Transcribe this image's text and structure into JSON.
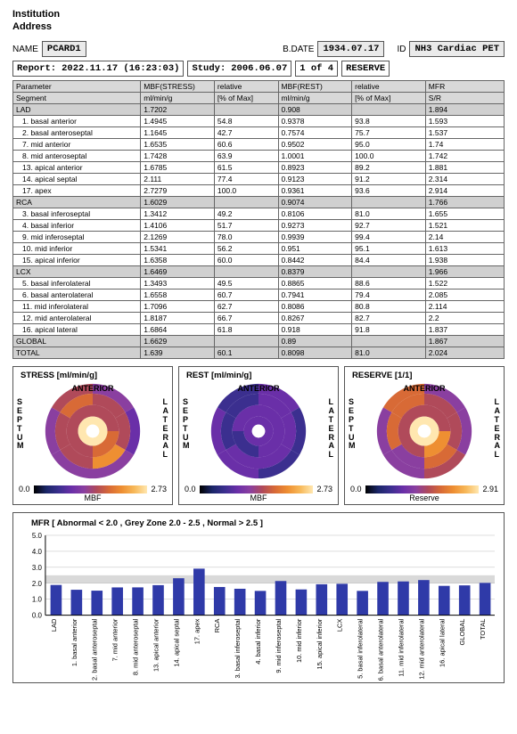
{
  "header": {
    "institution": "Institution",
    "address": "Address",
    "name_label": "NAME",
    "name": "PCARD1",
    "bdate_label": "B.DATE",
    "bdate": "1934.07.17",
    "id_label": "ID",
    "id": "NH3 Cardiac PET",
    "report_label": "Report:",
    "report": "2022.11.17 (16:23:03)",
    "study_label": "Study:",
    "study": "2006.06.07",
    "page": "1 of 4",
    "mode": "RESERVE"
  },
  "table": {
    "head": [
      "Parameter",
      "MBF(STRESS)",
      "relative",
      "MBF(REST)",
      "relative",
      "MFR"
    ],
    "units": [
      "Segment",
      "ml/min/g",
      "[% of Max]",
      "ml/min/g",
      "[% of Max]",
      "S/R"
    ],
    "colwidths": [
      "26%",
      "15%",
      "13%",
      "15%",
      "15%",
      "16%"
    ],
    "rows": [
      {
        "g": true,
        "c": [
          "LAD",
          "1.7202",
          "",
          "0.908",
          "",
          "1.894"
        ]
      },
      {
        "c": [
          "1. basal anterior",
          "1.4945",
          "54.8",
          "0.9378",
          "93.8",
          "1.593"
        ]
      },
      {
        "c": [
          "2. basal anteroseptal",
          "1.1645",
          "42.7",
          "0.7574",
          "75.7",
          "1.537"
        ]
      },
      {
        "c": [
          "7. mid anterior",
          "1.6535",
          "60.6",
          "0.9502",
          "95.0",
          "1.74"
        ]
      },
      {
        "c": [
          "8. mid anteroseptal",
          "1.7428",
          "63.9",
          "1.0001",
          "100.0",
          "1.742"
        ]
      },
      {
        "c": [
          "13. apical anterior",
          "1.6785",
          "61.5",
          "0.8923",
          "89.2",
          "1.881"
        ]
      },
      {
        "c": [
          "14. apical septal",
          "2.111",
          "77.4",
          "0.9123",
          "91.2",
          "2.314"
        ]
      },
      {
        "c": [
          "17. apex",
          "2.7279",
          "100.0",
          "0.9361",
          "93.6",
          "2.914"
        ]
      },
      {
        "g": true,
        "c": [
          "RCA",
          "1.6029",
          "",
          "0.9074",
          "",
          "1.766"
        ]
      },
      {
        "c": [
          "3. basal inferoseptal",
          "1.3412",
          "49.2",
          "0.8106",
          "81.0",
          "1.655"
        ]
      },
      {
        "c": [
          "4. basal inferior",
          "1.4106",
          "51.7",
          "0.9273",
          "92.7",
          "1.521"
        ]
      },
      {
        "c": [
          "9. mid inferoseptal",
          "2.1269",
          "78.0",
          "0.9939",
          "99.4",
          "2.14"
        ]
      },
      {
        "c": [
          "10. mid inferior",
          "1.5341",
          "56.2",
          "0.951",
          "95.1",
          "1.613"
        ]
      },
      {
        "c": [
          "15. apical inferior",
          "1.6358",
          "60.0",
          "0.8442",
          "84.4",
          "1.938"
        ]
      },
      {
        "g": true,
        "c": [
          "LCX",
          "1.6469",
          "",
          "0.8379",
          "",
          "1.966"
        ]
      },
      {
        "c": [
          "5. basal inferolateral",
          "1.3493",
          "49.5",
          "0.8865",
          "88.6",
          "1.522"
        ]
      },
      {
        "c": [
          "6. basal anterolateral",
          "1.6558",
          "60.7",
          "0.7941",
          "79.4",
          "2.085"
        ]
      },
      {
        "c": [
          "11. mid inferolateral",
          "1.7096",
          "62.7",
          "0.8086",
          "80.8",
          "2.114"
        ]
      },
      {
        "c": [
          "12. mid anterolateral",
          "1.8187",
          "66.7",
          "0.8267",
          "82.7",
          "2.2"
        ]
      },
      {
        "c": [
          "16. apical lateral",
          "1.6864",
          "61.8",
          "0.918",
          "91.8",
          "1.837"
        ]
      },
      {
        "g": true,
        "c": [
          "GLOBAL",
          "1.6629",
          "",
          "0.89",
          "",
          "1.867"
        ]
      },
      {
        "g": true,
        "c": [
          "TOTAL",
          "1.639",
          "60.1",
          "0.8098",
          "81.0",
          "2.024"
        ]
      }
    ]
  },
  "polar": {
    "anterior": "ANTERIOR",
    "septum": "SEPTUM",
    "lateral": "LATERAL",
    "panels": [
      {
        "title": "STRESS [ml/min/g]",
        "min": "0.0",
        "max": "2.73",
        "label": "MBF",
        "type": "stress"
      },
      {
        "title": "REST [ml/min/g]",
        "min": "0.0",
        "max": "2.73",
        "label": "MBF",
        "type": "rest"
      },
      {
        "title": "RESERVE [1/1]",
        "min": "0.0",
        "max": "2.91",
        "label": "Reserve",
        "type": "reserve"
      }
    ],
    "colormap": [
      "#000000",
      "#1a2668",
      "#3b2f8f",
      "#6a2fa8",
      "#8a3fa0",
      "#b04a5a",
      "#d86a36",
      "#ee8f32",
      "#f7b95a",
      "#ffe7b0"
    ],
    "stress_pct": [
      54.8,
      42.7,
      49.2,
      51.7,
      49.5,
      60.7,
      60.6,
      63.9,
      78.0,
      56.2,
      62.7,
      66.7,
      61.5,
      77.4,
      60.0,
      61.8,
      100.0
    ],
    "rest_pct": [
      35,
      30,
      32,
      35,
      34,
      32,
      36,
      38,
      38,
      36,
      32,
      33,
      34,
      35,
      33,
      35,
      36
    ],
    "reserve_pct": [
      54.7,
      52.7,
      56.8,
      52.2,
      52.3,
      71.6,
      59.8,
      59.8,
      73.5,
      55.4,
      72.6,
      75.6,
      64.6,
      79.5,
      66.6,
      63.1,
      100.0
    ]
  },
  "barchart": {
    "title": "MFR [ Abnormal < 2.0 , Grey Zone 2.0 - 2.5 , Normal > 2.5 ]",
    "ylim": [
      0,
      5
    ],
    "ytick": [
      0.0,
      1.0,
      2.0,
      3.0,
      4.0,
      5.0
    ],
    "greyzone": [
      2.0,
      2.5
    ],
    "bar_color": "#2f3aa8",
    "grey_color": "#d9d9d9",
    "labels": [
      "LAD",
      "1. basal anterior",
      "2. basal anteroseptal",
      "7. mid anterior",
      "8. mid anteroseptal",
      "13. apical anterior",
      "14. apical septal",
      "17. apex",
      "RCA",
      "3. basal inferoseptal",
      "4. basal inferior",
      "9. mid inferoseptal",
      "10. mid inferior",
      "15. apical inferior",
      "LCX",
      "5. basal inferolateral",
      "6. basal anterolateral",
      "11. mid inferolateral",
      "12. mid anterolateral",
      "16. apical lateral",
      "GLOBAL",
      "TOTAL"
    ],
    "values": [
      1.894,
      1.593,
      1.537,
      1.74,
      1.742,
      1.881,
      2.314,
      2.914,
      1.766,
      1.655,
      1.521,
      2.14,
      1.613,
      1.938,
      1.966,
      1.522,
      2.085,
      2.114,
      2.2,
      1.837,
      1.867,
      2.024
    ]
  }
}
